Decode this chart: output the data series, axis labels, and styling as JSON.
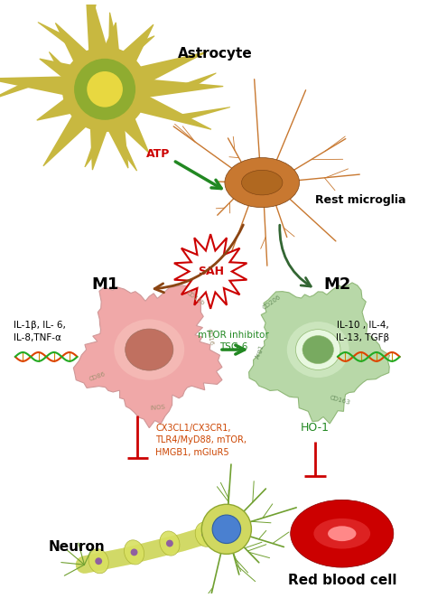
{
  "astrocyte_label": "Astrocyte",
  "rest_microglia_label": "Rest microglia",
  "atp_label": "ATP",
  "sah_label": "SAH",
  "m1_label": "M1",
  "m2_label": "M2",
  "m1_cytokines_line1": "IL-1β, IL- 6,",
  "m1_cytokines_line2": "IL-8,TNF-α",
  "m2_cytokines_line1": "IL-10 , IL-4,",
  "m2_cytokines_line2": "IL-13, TGFβ",
  "mtor_label": "mTOR inhibitor",
  "tsg_label": "TSG-6",
  "m1_inhibitors_line1": "CX3CL1/CX3CR1,",
  "m1_inhibitors_line2": "TLR4/MyD88, mTOR,",
  "m1_inhibitors_line3": "HMGB1, mGluR5",
  "ho1_label": "HO-1",
  "neuron_label": "Neuron",
  "rbc_label": "Red blood cell",
  "bg_color": "#ffffff",
  "arrow_green": "#228822",
  "arrow_brown": "#8b4513",
  "arrow_dark_green": "#336633",
  "inhibitor_color": "#cc4400",
  "mtor_color": "#228822",
  "ho1_color": "#228822",
  "sah_text_color": "#cc0000",
  "atp_color": "#cc0000",
  "m1_marker_color": "#a09070",
  "m2_marker_color": "#6a9060"
}
